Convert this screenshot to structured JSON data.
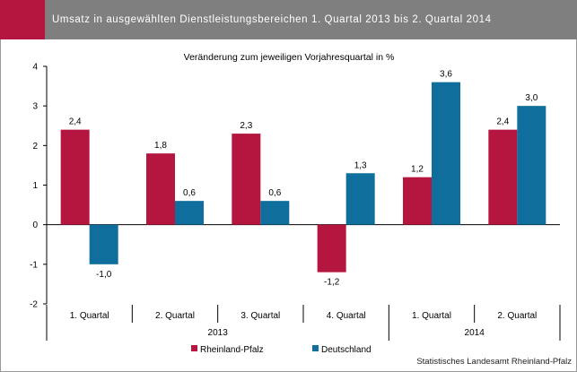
{
  "header": {
    "title": "Umsatz in ausgewählten Dienstleistungsbereichen 1. Quartal 2013 bis 2. Quartal 2014"
  },
  "source": "Statistisches Landesamt Rheinland-Pfalz",
  "colors": {
    "header_bg": "#7f7f7f",
    "accent": "#b5163f",
    "rheinland_pfalz": "#b5163f",
    "deutschland": "#0f6e9c"
  },
  "chart_data": {
    "type": "bar",
    "subtitle": "Veränderung zum jeweiligen Vorjahresquartal  in %",
    "categories": [
      "1. Quartal",
      "2. Quartal",
      "3. Quartal",
      "4. Quartal",
      "1. Quartal",
      "2. Quartal"
    ],
    "groups": [
      {
        "label": "2013",
        "span": 4
      },
      {
        "label": "2014",
        "span": 2
      }
    ],
    "series": [
      {
        "name": "Rheinland-Pfalz",
        "values": [
          2.4,
          1.8,
          2.3,
          -1.2,
          1.2,
          2.4
        ],
        "labels": [
          "2,4",
          "1,8",
          "2,3",
          "-1,2",
          "1,2",
          "2,4"
        ]
      },
      {
        "name": "Deutschland",
        "values": [
          -1.0,
          0.6,
          0.6,
          1.3,
          3.6,
          3.0
        ],
        "labels": [
          "-1,0",
          "0,6",
          "0,6",
          "1,3",
          "3,6",
          "3,0"
        ]
      }
    ],
    "ylim": [
      -2,
      4
    ],
    "yticks": [
      -2,
      -1,
      0,
      1,
      2,
      3,
      4
    ],
    "ytick_labels": [
      "-2",
      "-1",
      "0",
      "1",
      "2",
      "3",
      "4"
    ],
    "legend": "bottom",
    "grid": false
  }
}
